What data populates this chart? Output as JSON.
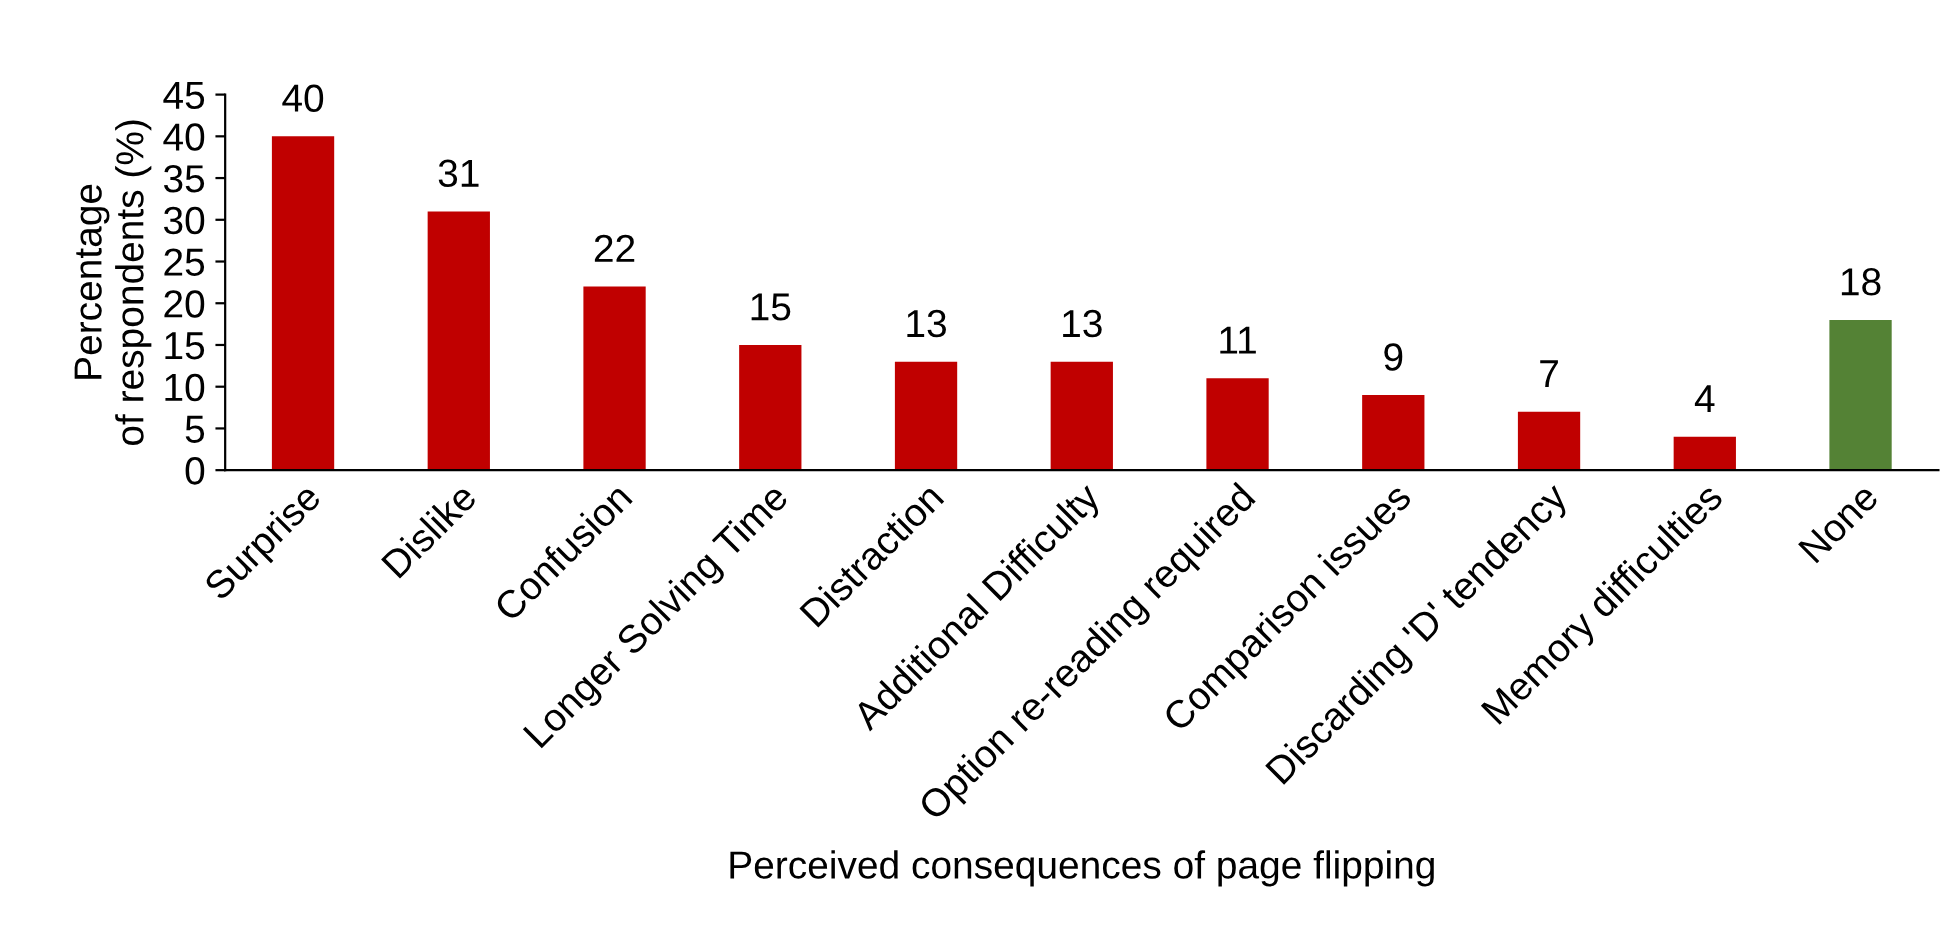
{
  "chart_data": {
    "type": "bar",
    "xlabel": "Perceived consequences of page flipping",
    "ylabel": "Percentage\nof respondents (%)",
    "categories": [
      "Surprise",
      "Dislike",
      "Confusion",
      "Longer Solving Time",
      "Distraction",
      "Additional Difficulty",
      "Option re-reading required",
      "Comparison issues",
      "Discarding 'D' tendency",
      "Memory difficulties",
      "None"
    ],
    "values": [
      40,
      31,
      22,
      15,
      13,
      13,
      11,
      9,
      7,
      4,
      18
    ],
    "colors": [
      "#c00000",
      "#c00000",
      "#c00000",
      "#c00000",
      "#c00000",
      "#c00000",
      "#c00000",
      "#c00000",
      "#c00000",
      "#c00000",
      "#548235"
    ],
    "ylim": [
      0,
      45
    ],
    "yticks": [
      0,
      5,
      10,
      15,
      20,
      25,
      30,
      35,
      40,
      45
    ],
    "data_labels": true,
    "grid": false
  }
}
